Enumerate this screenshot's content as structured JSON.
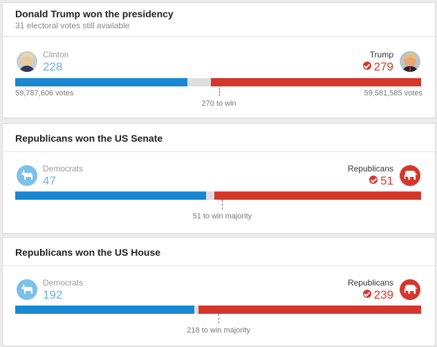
{
  "presidency": {
    "title": "Donald Trump won the presidency",
    "subtitle": "31 electoral votes still available",
    "dem_name": "Clinton",
    "dem_count": "228",
    "rep_name": "Trump",
    "rep_count": "279",
    "dem_votes": "59,787,606 votes",
    "rep_votes": "59,581,585 votes",
    "threshold_label": "270 to win",
    "dem_share": 0.4239,
    "rep_share": 0.5186,
    "threshold": 0.5019
  },
  "senate": {
    "title": "Republicans won the US Senate",
    "dem_name": "Democrats",
    "dem_count": "47",
    "rep_name": "Republicans",
    "rep_count": "51",
    "threshold_label": "51 to win majority",
    "dem_share": 0.47,
    "rep_share": 0.51,
    "threshold": 0.51
  },
  "house": {
    "title": "Republicans won the US House",
    "dem_name": "Democrats",
    "dem_count": "192",
    "rep_name": "Republicans",
    "rep_count": "239",
    "threshold_label": "218 to win majority",
    "dem_share": 0.4414,
    "rep_share": 0.5494,
    "threshold": 0.5011
  },
  "colors": {
    "democrat": "#1a87d1",
    "democrat_light": "#6bb1e0",
    "republican": "#d6372c",
    "undecided": "#dedede"
  },
  "icons": {
    "dem_candidate": "clinton-avatar",
    "rep_candidate": "trump-avatar",
    "dem_party": "donkey-icon",
    "rep_party": "elephant-icon",
    "winner": "check-icon"
  }
}
